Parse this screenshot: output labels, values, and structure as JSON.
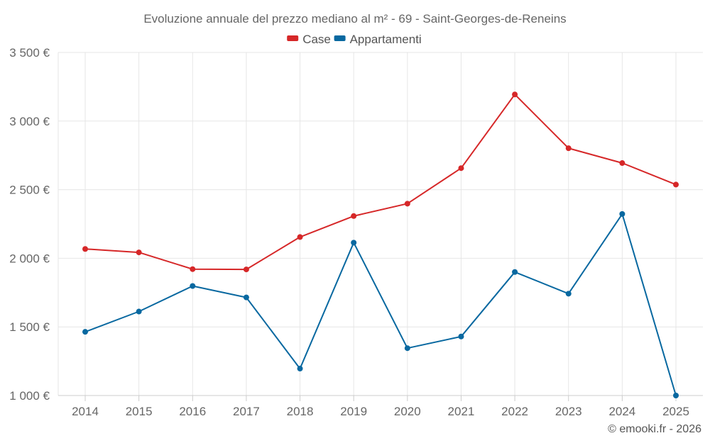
{
  "chart_data": {
    "type": "line",
    "title": "Evoluzione annuale del prezzo mediano al m² - 69 - Saint-Georges-de-Reneins",
    "xlabel": "",
    "ylabel": "",
    "categories": [
      "2014",
      "2015",
      "2016",
      "2017",
      "2018",
      "2019",
      "2020",
      "2021",
      "2022",
      "2023",
      "2024",
      "2025"
    ],
    "ylim": [
      1000,
      3500
    ],
    "yticks": [
      1000,
      1500,
      2000,
      2500,
      3000,
      3500
    ],
    "ytick_labels": [
      "1 000 €",
      "1 500 €",
      "2 000 €",
      "2 500 €",
      "3 000 €",
      "3 500 €"
    ],
    "grid": true,
    "legend_position": "top-center",
    "series": [
      {
        "name": "Case",
        "color": "#d62728",
        "values": [
          2068,
          2043,
          1921,
          1919,
          2155,
          2308,
          2398,
          2657,
          3194,
          2802,
          2694,
          2537
        ]
      },
      {
        "name": "Appartamenti",
        "color": "#0868a0",
        "values": [
          1464,
          1612,
          1798,
          1715,
          1196,
          2114,
          1345,
          1430,
          1900,
          1742,
          2323,
          1000
        ]
      }
    ],
    "credit": "© emooki.fr - 2026"
  }
}
